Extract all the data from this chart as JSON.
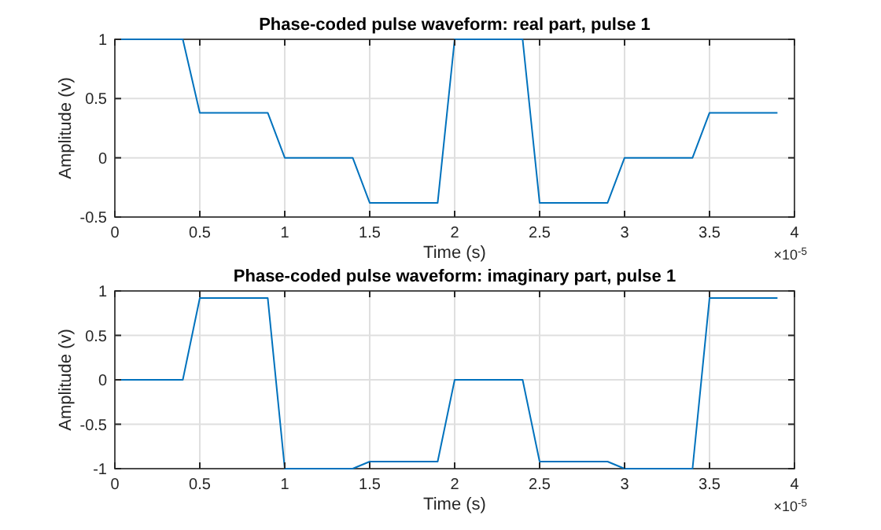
{
  "chart_data": [
    {
      "type": "line",
      "title": "Phase-coded pulse waveform: real part, pulse 1",
      "xlabel": "Time (s)",
      "ylabel": "Amplitude (v)",
      "annotations": [
        "×10$^{-5}$"
      ],
      "x": [
        0,
        0.4,
        0.5,
        0.9,
        1,
        1.4,
        1.5,
        1.9,
        2,
        2.4,
        2.5,
        2.9,
        3,
        3.4,
        3.5,
        3.9
      ],
      "series": [
        {
          "color": "#0072bd",
          "values": [
            1,
            1,
            0.38,
            0.38,
            0,
            0,
            -0.38,
            -0.38,
            1,
            1,
            -0.38,
            -0.38,
            0,
            0,
            0.38,
            0.38
          ]
        }
      ],
      "xlim": [
        0,
        4
      ],
      "xticks": [
        0,
        0.5,
        1,
        1.5,
        2,
        2.5,
        3,
        3.5,
        4
      ],
      "ylim": [
        -0.5,
        1
      ],
      "yticks": [
        -0.5,
        0,
        0.5,
        1
      ],
      "grid": true
    },
    {
      "type": "line",
      "title": "Phase-coded pulse waveform: imaginary part, pulse 1",
      "xlabel": "Time (s)",
      "ylabel": "Amplitude (v)",
      "annotations": [
        "×10$^{-5}$"
      ],
      "x": [
        0,
        0.4,
        0.5,
        0.9,
        1,
        1.4,
        1.5,
        1.9,
        2,
        2.4,
        2.5,
        2.9,
        3,
        3.4,
        3.5,
        3.9
      ],
      "series": [
        {
          "color": "#0072bd",
          "values": [
            0,
            0,
            0.92,
            0.92,
            -1,
            -1,
            -0.92,
            -0.92,
            0,
            0,
            -0.92,
            -0.92,
            -1,
            -1,
            0.92,
            0.92
          ]
        }
      ],
      "xlim": [
        0,
        4
      ],
      "xticks": [
        0,
        0.5,
        1,
        1.5,
        2,
        2.5,
        3,
        3.5,
        4
      ],
      "ylim": [
        -1,
        1
      ],
      "yticks": [
        -1,
        -0.5,
        0,
        0.5,
        1
      ],
      "grid": true
    }
  ]
}
